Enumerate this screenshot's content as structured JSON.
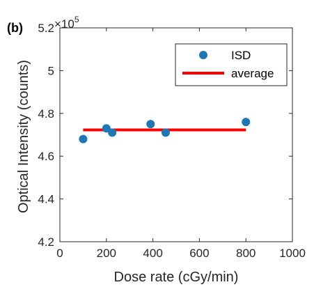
{
  "panel_label": "(b)",
  "chart_data": {
    "type": "scatter",
    "xlabel": "Dose rate (cGy/min)",
    "ylabel": "Optical Intensity (counts)",
    "xlim": [
      0,
      1000
    ],
    "ylim": [
      4.2,
      5.2
    ],
    "x_ticks": [
      "0",
      "200",
      "400",
      "600",
      "800",
      "1000"
    ],
    "y_ticks": [
      "4.2",
      "4.4",
      "4.6",
      "4.8",
      "5",
      "5.2"
    ],
    "y_multiplier_base": "×10",
    "y_multiplier_exp": "5",
    "grid": false,
    "legend_position": "top-right",
    "series": [
      {
        "name": "ISD",
        "kind": "scatter",
        "color": "#1f77b4",
        "x": [
          100,
          200,
          225,
          390,
          455,
          800
        ],
        "y": [
          4.68,
          4.73,
          4.71,
          4.75,
          4.71,
          4.76
        ]
      },
      {
        "name": "average",
        "kind": "line",
        "color": "#ff0000",
        "x": [
          100,
          800
        ],
        "y": [
          4.723,
          4.723
        ]
      }
    ]
  }
}
